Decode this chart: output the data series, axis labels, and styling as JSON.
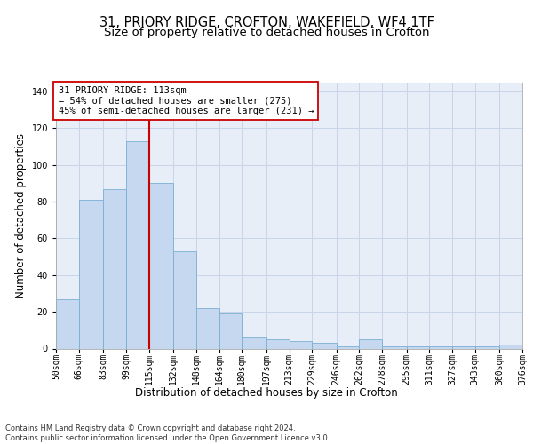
{
  "title1": "31, PRIORY RIDGE, CROFTON, WAKEFIELD, WF4 1TF",
  "title2": "Size of property relative to detached houses in Crofton",
  "xlabel": "Distribution of detached houses by size in Crofton",
  "ylabel": "Number of detached properties",
  "bin_edges": [
    50,
    66,
    83,
    99,
    115,
    132,
    148,
    164,
    180,
    197,
    213,
    229,
    246,
    262,
    278,
    295,
    311,
    327,
    343,
    360,
    376
  ],
  "bar_heights": [
    27,
    81,
    87,
    113,
    90,
    53,
    22,
    19,
    6,
    5,
    4,
    3,
    1,
    5,
    1,
    1,
    1,
    1,
    1,
    2
  ],
  "tick_labels": [
    "50sqm",
    "66sqm",
    "83sqm",
    "99sqm",
    "115sqm",
    "132sqm",
    "148sqm",
    "164sqm",
    "180sqm",
    "197sqm",
    "213sqm",
    "229sqm",
    "246sqm",
    "262sqm",
    "278sqm",
    "295sqm",
    "311sqm",
    "327sqm",
    "343sqm",
    "360sqm",
    "376sqm"
  ],
  "bar_color": "#c5d8f0",
  "bar_edge_color": "#7aafd4",
  "vline_x": 115,
  "vline_color": "#cc0000",
  "annotation_text": "31 PRIORY RIDGE: 113sqm\n← 54% of detached houses are smaller (275)\n45% of semi-detached houses are larger (231) →",
  "annotation_box_color": "#ffffff",
  "annotation_box_edge": "#cc0000",
  "ylim": [
    0,
    145
  ],
  "yticks": [
    0,
    20,
    40,
    60,
    80,
    100,
    120,
    140
  ],
  "grid_color": "#c8d4e8",
  "background_color": "#e8eef8",
  "footnote": "Contains HM Land Registry data © Crown copyright and database right 2024.\nContains public sector information licensed under the Open Government Licence v3.0.",
  "title1_fontsize": 10.5,
  "title2_fontsize": 9.5,
  "xlabel_fontsize": 8.5,
  "ylabel_fontsize": 8.5,
  "tick_fontsize": 7,
  "annotation_fontsize": 7.5
}
